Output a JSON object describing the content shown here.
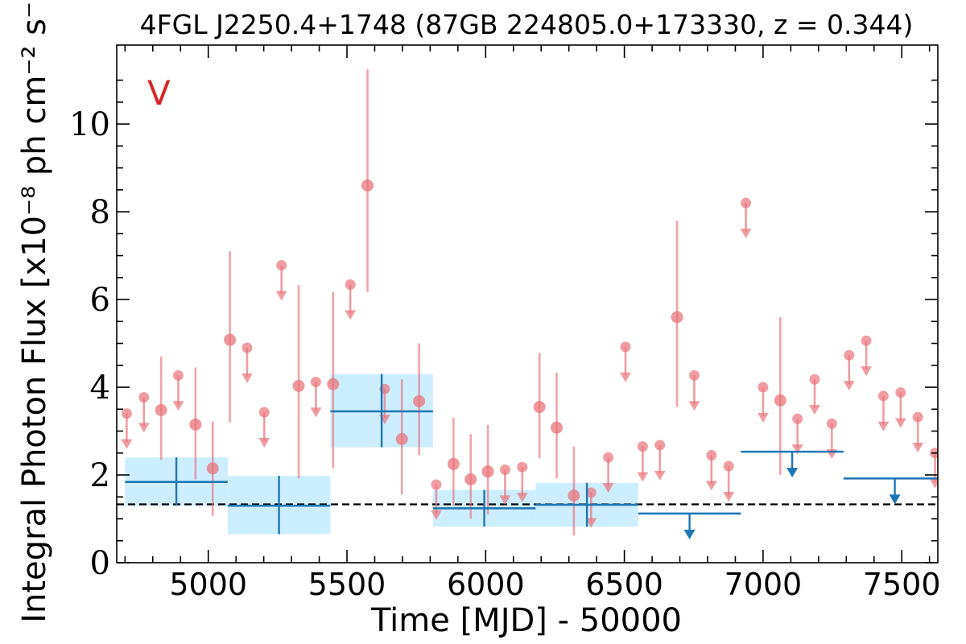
{
  "chart_data": {
    "type": "scatter",
    "title": "4FGL J2250.4+1748 (87GB 224805.0+173330, z = 0.344)",
    "panel_label": "V",
    "xlabel": "Time [MJD] - 50000",
    "ylabel": "Integral Photon Flux [x10⁻⁸ ph cm⁻² s⁻¹]",
    "xlim": [
      4670,
      7630
    ],
    "ylim": [
      0,
      11.8
    ],
    "xticks": [
      5000,
      5500,
      6000,
      6500,
      7000,
      7500
    ],
    "yticks": [
      0,
      2,
      4,
      6,
      8,
      10
    ],
    "grid": false,
    "baseline_flux": 1.33,
    "colors": {
      "short_bins": "#e8747c",
      "long_bins": "#1f77b4",
      "long_bins_band": "#cdeeff",
      "panel_label": "#d62728",
      "baseline": "#000000"
    },
    "series": [
      {
        "points": [
          {
            "x": 4706,
            "y": 3.4,
            "upper_limit": true
          },
          {
            "x": 4768,
            "y": 3.77,
            "upper_limit": true
          },
          {
            "x": 4830,
            "y": 3.48,
            "ylo": 2.35,
            "yhi": 4.7
          },
          {
            "x": 4892,
            "y": 4.27,
            "upper_limit": true
          },
          {
            "x": 4954,
            "y": 3.15,
            "ylo": 1.9,
            "yhi": 4.45
          },
          {
            "x": 5016,
            "y": 2.15,
            "ylo": 1.07,
            "yhi": 3.22
          },
          {
            "x": 5078,
            "y": 5.08,
            "ylo": 3.2,
            "yhi": 7.1
          },
          {
            "x": 5140,
            "y": 4.9,
            "upper_limit": true
          },
          {
            "x": 5202,
            "y": 3.43,
            "upper_limit": true
          },
          {
            "x": 5264,
            "y": 6.78,
            "upper_limit": true
          },
          {
            "x": 5326,
            "y": 4.03,
            "ylo": 1.92,
            "yhi": 6.33
          },
          {
            "x": 5388,
            "y": 4.12,
            "upper_limit": true
          },
          {
            "x": 5450,
            "y": 4.07,
            "ylo": 2.15,
            "yhi": 6.17
          },
          {
            "x": 5512,
            "y": 6.34,
            "upper_limit": true
          },
          {
            "x": 5574,
            "y": 8.6,
            "ylo": 6.17,
            "yhi": 11.25
          },
          {
            "x": 5636,
            "y": 3.96,
            "upper_limit": true
          },
          {
            "x": 5698,
            "y": 2.82,
            "ylo": 1.55,
            "yhi": 4.18
          },
          {
            "x": 5760,
            "y": 3.68,
            "ylo": 2.45,
            "yhi": 5.0
          },
          {
            "x": 5822,
            "y": 1.78,
            "upper_limit": true
          },
          {
            "x": 5884,
            "y": 2.25,
            "ylo": 1.3,
            "yhi": 3.3
          },
          {
            "x": 5946,
            "y": 1.9,
            "ylo": 1.0,
            "yhi": 2.93
          },
          {
            "x": 6008,
            "y": 2.08,
            "ylo": 1.1,
            "yhi": 3.14
          },
          {
            "x": 6070,
            "y": 2.12,
            "upper_limit": true
          },
          {
            "x": 6132,
            "y": 2.18,
            "upper_limit": true
          },
          {
            "x": 6194,
            "y": 3.55,
            "ylo": 2.38,
            "yhi": 4.78
          },
          {
            "x": 6256,
            "y": 3.08,
            "ylo": 1.93,
            "yhi": 4.33
          },
          {
            "x": 6318,
            "y": 1.53,
            "ylo": 0.62,
            "yhi": 2.65
          },
          {
            "x": 6380,
            "y": 1.6,
            "upper_limit": true
          },
          {
            "x": 6442,
            "y": 2.4,
            "upper_limit": true
          },
          {
            "x": 6504,
            "y": 4.92,
            "upper_limit": true
          },
          {
            "x": 6566,
            "y": 2.65,
            "upper_limit": true
          },
          {
            "x": 6628,
            "y": 2.68,
            "upper_limit": true
          },
          {
            "x": 6690,
            "y": 5.6,
            "ylo": 3.55,
            "yhi": 7.8
          },
          {
            "x": 6752,
            "y": 4.27,
            "upper_limit": true
          },
          {
            "x": 6814,
            "y": 2.45,
            "upper_limit": true
          },
          {
            "x": 6876,
            "y": 2.2,
            "upper_limit": true
          },
          {
            "x": 6938,
            "y": 8.2,
            "upper_limit": true
          },
          {
            "x": 7000,
            "y": 4.0,
            "upper_limit": true
          },
          {
            "x": 7062,
            "y": 3.7,
            "ylo": 2.0,
            "yhi": 5.6
          },
          {
            "x": 7124,
            "y": 3.28,
            "upper_limit": true
          },
          {
            "x": 7186,
            "y": 4.18,
            "upper_limit": true
          },
          {
            "x": 7248,
            "y": 3.17,
            "upper_limit": true
          },
          {
            "x": 7310,
            "y": 4.73,
            "upper_limit": true
          },
          {
            "x": 7372,
            "y": 5.06,
            "upper_limit": true
          },
          {
            "x": 7434,
            "y": 3.8,
            "upper_limit": true
          },
          {
            "x": 7496,
            "y": 3.88,
            "upper_limit": true
          },
          {
            "x": 7558,
            "y": 3.32,
            "upper_limit": true
          },
          {
            "x": 7620,
            "y": 2.5,
            "upper_limit": true
          }
        ]
      },
      {
        "points": [
          {
            "x0": 4700,
            "x1": 5070,
            "x": 4885,
            "y": 1.84,
            "ylo": 1.3,
            "yhi": 2.4
          },
          {
            "x0": 5070,
            "x1": 5440,
            "x": 5255,
            "y": 1.3,
            "ylo": 0.65,
            "yhi": 1.98
          },
          {
            "x0": 5440,
            "x1": 5810,
            "x": 5625,
            "y": 3.45,
            "ylo": 2.63,
            "yhi": 4.3
          },
          {
            "x0": 5810,
            "x1": 6180,
            "x": 5995,
            "y": 1.24,
            "ylo": 0.82,
            "yhi": 1.66
          },
          {
            "x0": 6180,
            "x1": 6550,
            "x": 6365,
            "y": 1.32,
            "ylo": 0.82,
            "yhi": 1.82
          },
          {
            "x0": 6550,
            "x1": 6920,
            "x": 6735,
            "y": 1.12,
            "upper_limit": true
          },
          {
            "x0": 6920,
            "x1": 7290,
            "x": 7105,
            "y": 2.53,
            "upper_limit": true
          },
          {
            "x0": 7290,
            "x1": 7660,
            "x": 7475,
            "y": 1.92,
            "upper_limit": true
          }
        ]
      }
    ]
  }
}
